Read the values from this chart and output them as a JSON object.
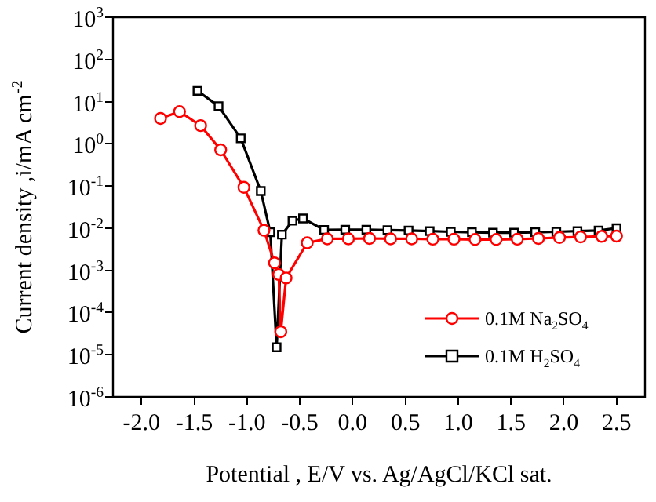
{
  "chart_data": {
    "type": "line",
    "xlabel": "Potential , E/V vs. Ag/AgCl/KCl sat.",
    "ylabel": "Current density ,i/mA cm$^{-2}$",
    "log": "y",
    "grid": false,
    "legend": "bottom right",
    "line_style": "solid",
    "xlim": [
      -2.27,
      2.77
    ],
    "xticks": [
      {
        "value": -2,
        "label": "-2.0"
      },
      {
        "value": -1.5,
        "label": "-1.5"
      },
      {
        "value": -1,
        "label": "-1.0"
      },
      {
        "value": -0.5,
        "label": "-0.5"
      },
      {
        "value": 0,
        "label": "0.0"
      },
      {
        "value": 0.5,
        "label": "0.5"
      },
      {
        "value": 1,
        "label": "1.0"
      },
      {
        "value": 1.5,
        "label": "1.5"
      },
      {
        "value": 2,
        "label": "2.0"
      },
      {
        "value": 2.5,
        "label": "2.5"
      }
    ],
    "ylim": [
      1e-06,
      1000
    ],
    "yticks": [
      {
        "value": 1e-06,
        "label": "10$^{-6}$"
      },
      {
        "value": 1e-05,
        "label": "10$^{-5}$"
      },
      {
        "value": 0.0001,
        "label": "10$^{-4}$"
      },
      {
        "value": 0.001,
        "label": "10$^{-3}$"
      },
      {
        "value": 0.01,
        "label": "10$^{-2}$"
      },
      {
        "value": 0.1,
        "label": "10$^{-1}$"
      },
      {
        "value": 1,
        "label": "10$^{0}$"
      },
      {
        "value": 10,
        "label": "10$^{1}$"
      },
      {
        "value": 100,
        "label": "10$^{2}$"
      },
      {
        "value": 1000,
        "label": "10$^{3}$"
      }
    ],
    "series": [
      {
        "name": "0.1M Na$_{2}$SO$_{4}$",
        "color": "#ff0000",
        "marker": "circle",
        "x": [
          -1.82,
          -1.64,
          -1.44,
          -1.25,
          -1.03,
          -0.84,
          -0.74,
          -0.7,
          -0.68,
          -0.63,
          -0.43,
          -0.24,
          -0.04,
          0.16,
          0.36,
          0.56,
          0.76,
          0.96,
          1.16,
          1.36,
          1.56,
          1.76,
          1.96,
          2.16,
          2.36,
          2.5
        ],
        "values": [
          4.0,
          5.8,
          2.7,
          0.72,
          0.093,
          0.0089,
          0.0015,
          0.0008,
          3.5e-05,
          0.00066,
          0.0045,
          0.0056,
          0.0056,
          0.0057,
          0.0056,
          0.0056,
          0.0055,
          0.0055,
          0.0054,
          0.0054,
          0.0055,
          0.0057,
          0.006,
          0.0062,
          0.0064,
          0.0065
        ]
      },
      {
        "name": "0.1M H$_{2}$SO$_{4}$",
        "color": "#000000",
        "marker": "square",
        "x": [
          -1.47,
          -1.27,
          -1.06,
          -0.87,
          -0.78,
          -0.72,
          -0.67,
          -0.57,
          -0.47,
          -0.27,
          -0.07,
          0.13,
          0.33,
          0.53,
          0.73,
          0.93,
          1.13,
          1.33,
          1.53,
          1.73,
          1.93,
          2.13,
          2.33,
          2.5
        ],
        "values": [
          18,
          7.8,
          1.35,
          0.076,
          0.008,
          1.5e-05,
          0.007,
          0.015,
          0.017,
          0.0091,
          0.0092,
          0.0092,
          0.009,
          0.0088,
          0.0085,
          0.0082,
          0.008,
          0.0078,
          0.0078,
          0.008,
          0.0082,
          0.0085,
          0.0088,
          0.01
        ]
      }
    ]
  }
}
